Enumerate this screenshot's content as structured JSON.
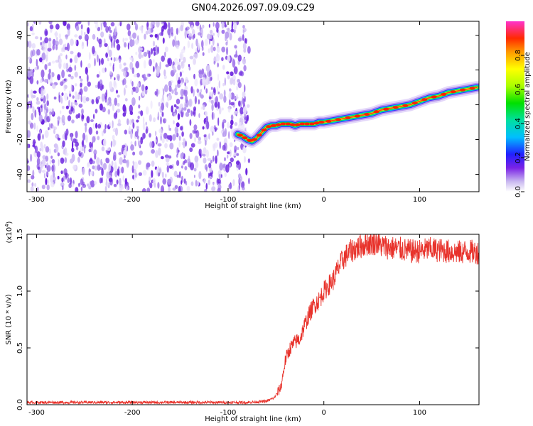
{
  "title": "GN04.2026.097.09.09.C29",
  "chart_data": [
    {
      "type": "heatmap",
      "xlabel": "Height of straight line (km)",
      "ylabel": "Frequency (Hz)",
      "xlim": [
        -310,
        162
      ],
      "ylim": [
        -50,
        48
      ],
      "xticks": [
        -300,
        -200,
        -100,
        0,
        100
      ],
      "yticks": [
        -40,
        -20,
        0,
        20,
        40
      ],
      "noise_region_x": [
        -310,
        -78
      ],
      "ridge": {
        "x": [
          -90,
          -85,
          -80,
          -75,
          -70,
          -65,
          -60,
          -55,
          -50,
          -45,
          -40,
          -35,
          -30,
          -25,
          -20,
          -15,
          -10,
          -5,
          0,
          10,
          20,
          30,
          40,
          50,
          60,
          70,
          80,
          90,
          100,
          110,
          120,
          130,
          140,
          150,
          160
        ],
        "y": [
          -17,
          -18,
          -20,
          -21,
          -19,
          -16,
          -13,
          -12,
          -12,
          -11,
          -11,
          -11,
          -12,
          -11,
          -11,
          -11,
          -11,
          -10,
          -10,
          -9,
          -8,
          -7,
          -6,
          -5,
          -3,
          -2,
          -1,
          0,
          2,
          4,
          5,
          7,
          8,
          9,
          10
        ]
      },
      "colorbar": {
        "label": "Normalized spectral amplitude",
        "range": [
          0,
          1
        ],
        "ticks": [
          "0.0",
          "0.2",
          "0.4",
          "0.6",
          "0.8"
        ]
      }
    },
    {
      "type": "line",
      "xlabel": "Height of straight line (km)",
      "ylabel": "SNR (10 * v/v)",
      "y_scale_label": "(x10",
      "y_scale_exp": "4",
      "xlim": [
        -310,
        162
      ],
      "ylim": [
        0,
        1.5
      ],
      "xticks": [
        -300,
        -200,
        -100,
        0,
        100
      ],
      "yticks": [
        "0.0",
        "0.5",
        "1.0",
        "1.5"
      ],
      "color": "#e8322b",
      "series": [
        {
          "x": [
            -310,
            -80,
            -60,
            -52,
            -45,
            -40,
            -35,
            -30,
            -25,
            -20,
            -15,
            -10,
            -5,
            0,
            5,
            10,
            15,
            20,
            25,
            30,
            35,
            40,
            45,
            50,
            55,
            60,
            70,
            80,
            90,
            100,
            110,
            120,
            130,
            140,
            150,
            162
          ],
          "values": [
            0.02,
            0.02,
            0.03,
            0.06,
            0.15,
            0.4,
            0.5,
            0.55,
            0.58,
            0.7,
            0.8,
            0.88,
            0.92,
            1.0,
            1.05,
            1.1,
            1.2,
            1.28,
            1.33,
            1.36,
            1.38,
            1.4,
            1.42,
            1.42,
            1.43,
            1.4,
            1.38,
            1.37,
            1.35,
            1.35,
            1.37,
            1.36,
            1.35,
            1.34,
            1.35,
            1.34
          ]
        }
      ]
    }
  ]
}
